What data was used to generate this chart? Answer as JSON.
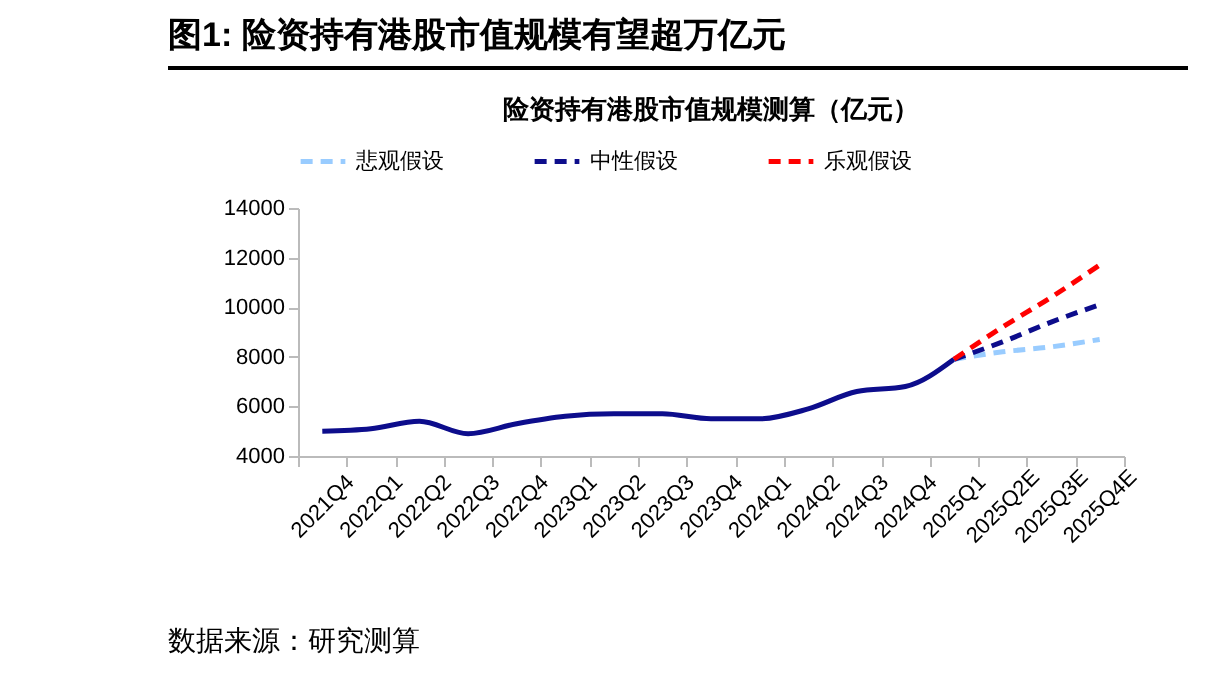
{
  "chart_data": {
    "type": "line",
    "title": "图1:  险资持有港股市值规模有望超万亿元",
    "subtitle": "险资持有港股市值规模测算（亿元）",
    "annotations": [
      "数据来源：研究测算"
    ],
    "categories": [
      "2021Q4",
      "2022Q1",
      "2022Q2",
      "2022Q3",
      "2022Q4",
      "2023Q1",
      "2023Q2",
      "2023Q3",
      "2023Q4",
      "2024Q1",
      "2024Q2",
      "2024Q3",
      "2024Q4",
      "2025Q1",
      "2025Q2E",
      "2025Q3E",
      "2025Q4E"
    ],
    "series": [
      {
        "color": "#0d0d8c",
        "line_style": "solid",
        "values": [
          5000,
          5100,
          5400,
          4900,
          5300,
          5600,
          5700,
          5700,
          5500,
          5500,
          5900,
          6600,
          6800,
          7900,
          null,
          null,
          null
        ]
      },
      {
        "name": "悲观假设",
        "color": "#99ccff",
        "line_style": "dashed",
        "values": [
          null,
          null,
          null,
          null,
          null,
          null,
          null,
          null,
          null,
          null,
          null,
          null,
          null,
          7900,
          8200,
          8400,
          8700
        ]
      },
      {
        "name": "中性假设",
        "color": "#0d0d8c",
        "line_style": "dashed",
        "values": [
          null,
          null,
          null,
          null,
          null,
          null,
          null,
          null,
          null,
          null,
          null,
          null,
          null,
          7900,
          8600,
          9400,
          10100
        ]
      },
      {
        "name": "乐观假设",
        "color": "#ff0000",
        "line_style": "dashed",
        "values": [
          null,
          null,
          null,
          null,
          null,
          null,
          null,
          null,
          null,
          null,
          null,
          null,
          null,
          7900,
          9200,
          10400,
          11700
        ]
      }
    ],
    "ylim": [
      4000,
      14000
    ],
    "yticks": [
      4000,
      6000,
      8000,
      10000,
      12000,
      14000
    ],
    "grid": false,
    "legend": "top"
  }
}
